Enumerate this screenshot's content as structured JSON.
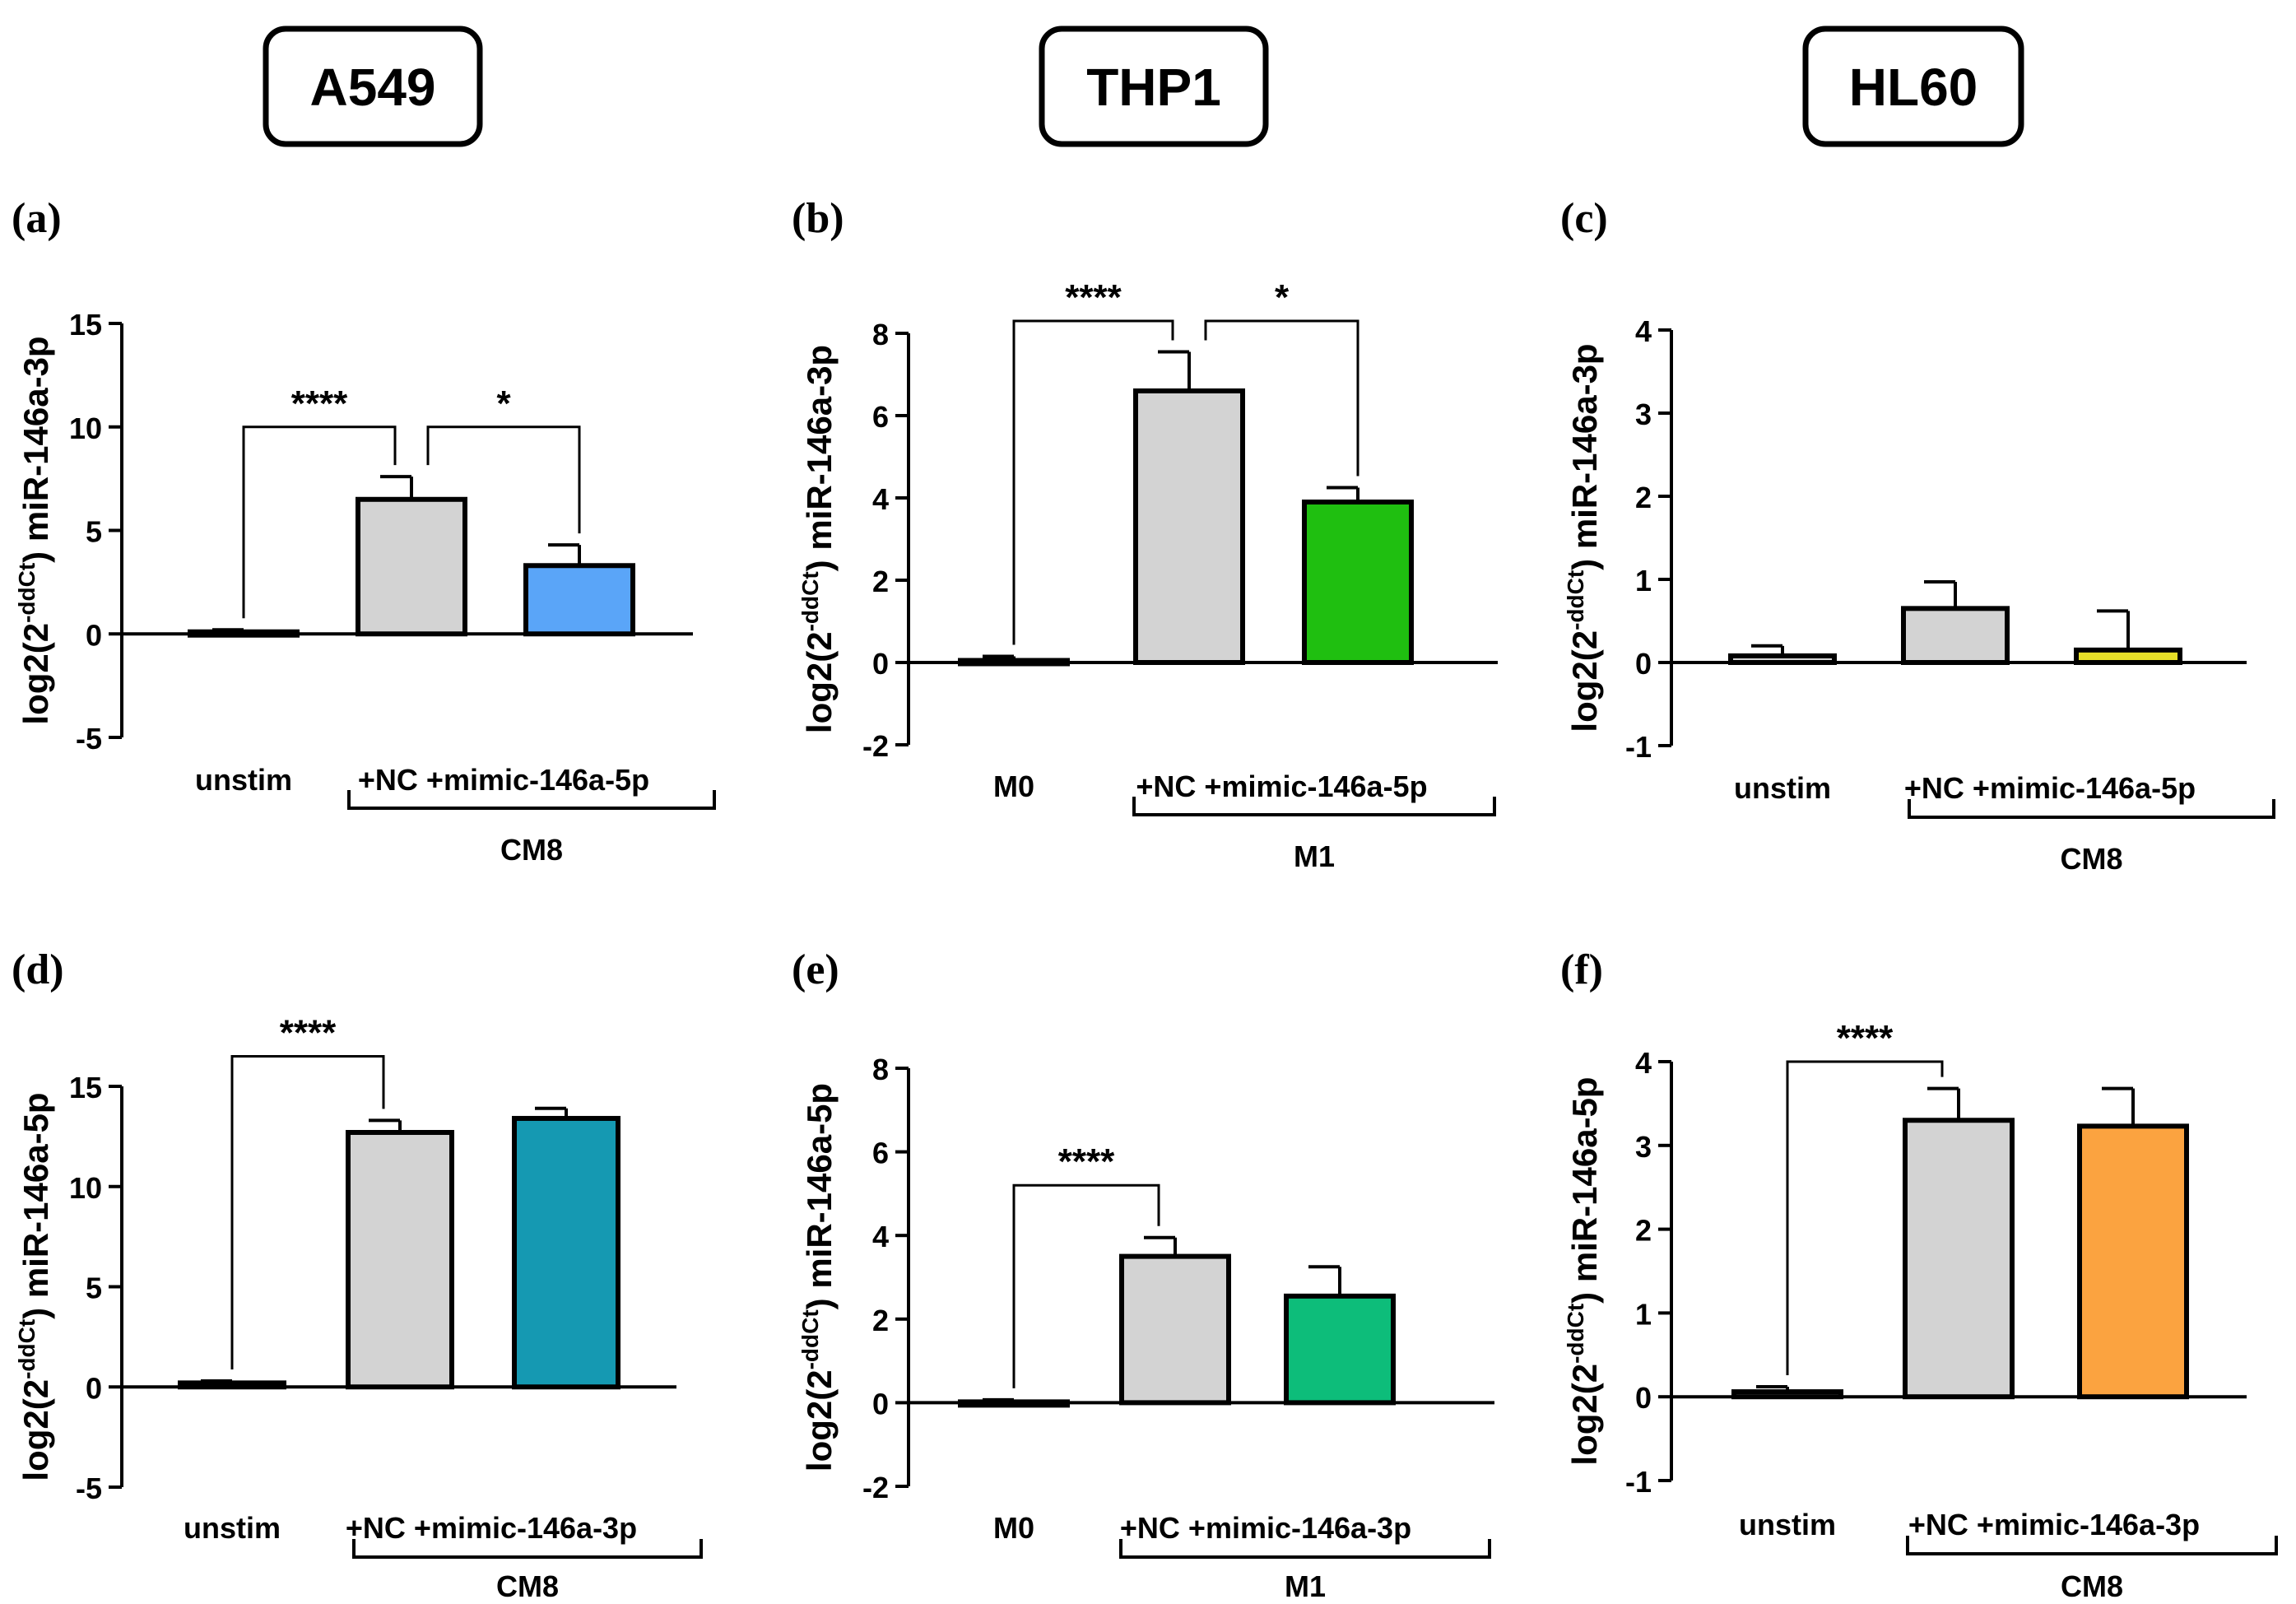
{
  "figure": {
    "headers": [
      "A549",
      "THP1",
      "HL60"
    ],
    "panel_labels": [
      "(a)",
      "(b)",
      "(c)",
      "(d)",
      "(e)",
      "(f)"
    ]
  },
  "chart_data": [
    {
      "type": "bar",
      "panel": "(a)",
      "cell_line": "A549",
      "ylabel": "log2(2-ddCt) miR-146a-3p",
      "ylim": [
        -5,
        15
      ],
      "yticks": [
        -5,
        0,
        5,
        10,
        15
      ],
      "categories": [
        "unstim",
        "+NC",
        "+mimic-146a-5p"
      ],
      "values": [
        0.1,
        6.5,
        3.3
      ],
      "errors": [
        0.1,
        1.1,
        1.0
      ],
      "colors": [
        "#d3d3d3",
        "#d3d3d3",
        "#5aa5f8"
      ],
      "category_labels": [
        "unstim",
        "+NC +mimic-146a-5p"
      ],
      "group_label": "CM8",
      "group_span": [
        1,
        2
      ],
      "significance": [
        {
          "bars": [
            0,
            1
          ],
          "label": "****",
          "y": 10
        },
        {
          "bars": [
            1,
            2
          ],
          "label": "*",
          "y": 10
        }
      ]
    },
    {
      "type": "bar",
      "panel": "(b)",
      "cell_line": "THP1",
      "ylabel": "log2(2-ddCt) miR-146a-3p",
      "ylim": [
        -2,
        8
      ],
      "yticks": [
        -2,
        0,
        2,
        4,
        6,
        8
      ],
      "categories": [
        "M0",
        "+NC",
        "+mimic-146a-5p"
      ],
      "values": [
        0.05,
        6.6,
        3.9
      ],
      "errors": [
        0.1,
        0.95,
        0.35
      ],
      "colors": [
        "#d3d3d3",
        "#d3d3d3",
        "#1fbf10"
      ],
      "category_labels": [
        "M0",
        "+NC +mimic-146a-5p"
      ],
      "group_label": "M1",
      "group_span": [
        1,
        2
      ],
      "significance": [
        {
          "bars": [
            0,
            1
          ],
          "label": "****",
          "y": 8.3
        },
        {
          "bars": [
            1,
            2
          ],
          "label": "*",
          "y": 8.3
        }
      ]
    },
    {
      "type": "bar",
      "panel": "(c)",
      "cell_line": "HL60",
      "ylabel": "log2(2-ddCt) miR-146a-3p",
      "ylim": [
        -1,
        4
      ],
      "yticks": [
        -1,
        0,
        1,
        2,
        3,
        4
      ],
      "categories": [
        "unstim",
        "+NC",
        "+mimic-146a-5p"
      ],
      "values": [
        0.08,
        0.65,
        0.15
      ],
      "errors": [
        0.12,
        0.32,
        0.47
      ],
      "colors": [
        "#d3d3d3",
        "#d3d3d3",
        "#e6df28"
      ],
      "category_labels": [
        "unstim",
        "+NC +mimic-146a-5p"
      ],
      "group_label": "CM8",
      "group_span": [
        1,
        2
      ],
      "significance": []
    },
    {
      "type": "bar",
      "panel": "(d)",
      "cell_line": "A549",
      "ylabel": "log2(2-ddCt) miR-146a-5p",
      "ylim": [
        -5,
        15
      ],
      "yticks": [
        -5,
        0,
        5,
        10,
        15
      ],
      "categories": [
        "unstim",
        "+NC",
        "+mimic-146a-3p"
      ],
      "values": [
        0.2,
        12.7,
        13.4
      ],
      "errors": [
        0.1,
        0.6,
        0.5
      ],
      "colors": [
        "#d3d3d3",
        "#d3d3d3",
        "#1599b2"
      ],
      "category_labels": [
        "unstim",
        "+NC +mimic-146a-3p"
      ],
      "group_label": "CM8",
      "group_span": [
        1,
        2
      ],
      "significance": [
        {
          "bars": [
            0,
            1
          ],
          "label": "****",
          "y": 16.5
        }
      ]
    },
    {
      "type": "bar",
      "panel": "(e)",
      "cell_line": "THP1",
      "ylabel": "log2(2-ddCt) miR-146a-5p",
      "ylim": [
        -2,
        8
      ],
      "yticks": [
        -2,
        0,
        2,
        4,
        6,
        8
      ],
      "categories": [
        "M0",
        "+NC",
        "+mimic-146a-3p"
      ],
      "values": [
        0.02,
        3.5,
        2.55
      ],
      "errors": [
        0.05,
        0.45,
        0.7
      ],
      "colors": [
        "#d3d3d3",
        "#d3d3d3",
        "#0dbd7a"
      ],
      "category_labels": [
        "M0",
        "+NC +mimic-146a-3p"
      ],
      "group_label": "M1",
      "group_span": [
        1,
        2
      ],
      "significance": [
        {
          "bars": [
            0,
            1
          ],
          "label": "****",
          "y": 5.2
        }
      ]
    },
    {
      "type": "bar",
      "panel": "(f)",
      "cell_line": "HL60",
      "ylabel": "log2(2-ddCt) miR-146a-5p",
      "ylim": [
        -1,
        4
      ],
      "yticks": [
        -1,
        0,
        1,
        2,
        3,
        4
      ],
      "categories": [
        "unstim",
        "+NC",
        "+mimic-146a-3p"
      ],
      "values": [
        0.06,
        3.3,
        3.23
      ],
      "errors": [
        0.06,
        0.38,
        0.45
      ],
      "colors": [
        "#d3d3d3",
        "#d3d3d3",
        "#fba340"
      ],
      "category_labels": [
        "unstim",
        "+NC +mimic-146a-3p"
      ],
      "group_label": "CM8",
      "group_span": [
        1,
        2
      ],
      "significance": [
        {
          "bars": [
            0,
            1
          ],
          "label": "****",
          "y": 4.0
        }
      ]
    }
  ]
}
